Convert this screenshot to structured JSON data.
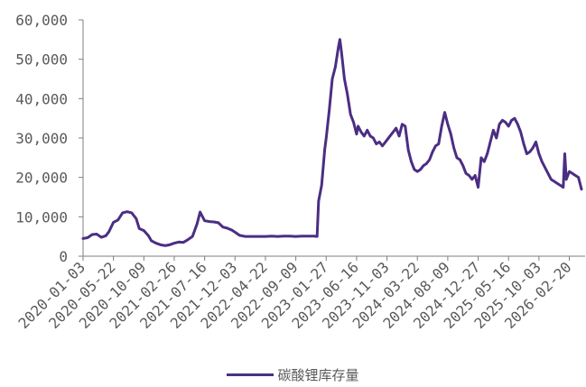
{
  "colors": {
    "series": "#4B2E83",
    "axis": "#7f7f7f",
    "text": "#595959"
  },
  "chart_data": {
    "type": "line",
    "title": "",
    "xlabel": "",
    "ylabel": "",
    "ylim": [
      0,
      60000
    ],
    "yticks": [
      0,
      10000,
      20000,
      30000,
      40000,
      50000,
      60000
    ],
    "ytick_labels": [
      "0",
      "10,000",
      "20,000",
      "30,000",
      "40,000",
      "50,000",
      "60,000"
    ],
    "xtick_labels": [
      "2020-01-03",
      "2020-05-22",
      "2020-10-09",
      "2021-02-26",
      "2021-07-16",
      "2021-12-03",
      "2022-04-22",
      "2022-09-09",
      "2023-01-27",
      "2023-06-16",
      "2023-11-03",
      "2024-03-22",
      "2024-08-09",
      "2024-12-27",
      "2025-05-16",
      "2025-10-03",
      "2026-02-20"
    ],
    "x_range": [
      "2020-01-03",
      "2026-04-17"
    ],
    "grid": false,
    "legend_position": "bottom",
    "series": [
      {
        "name": "碳酸锂库存量",
        "color": "#4B2E83",
        "points": [
          [
            "2020-01-03",
            4500
          ],
          [
            "2020-01-24",
            4700
          ],
          [
            "2020-02-14",
            5500
          ],
          [
            "2020-03-06",
            5600
          ],
          [
            "2020-03-27",
            4800
          ],
          [
            "2020-04-17",
            5200
          ],
          [
            "2020-05-01",
            6200
          ],
          [
            "2020-05-22",
            8600
          ],
          [
            "2020-06-12",
            9200
          ],
          [
            "2020-07-03",
            11000
          ],
          [
            "2020-07-24",
            11300
          ],
          [
            "2020-08-14",
            11000
          ],
          [
            "2020-09-04",
            9500
          ],
          [
            "2020-09-18",
            7000
          ],
          [
            "2020-10-09",
            6500
          ],
          [
            "2020-10-30",
            5200
          ],
          [
            "2020-11-13",
            3900
          ],
          [
            "2020-12-04",
            3300
          ],
          [
            "2020-12-25",
            2900
          ],
          [
            "2021-01-15",
            2700
          ],
          [
            "2021-02-05",
            2900
          ],
          [
            "2021-02-26",
            3300
          ],
          [
            "2021-03-19",
            3600
          ],
          [
            "2021-04-09",
            3500
          ],
          [
            "2021-04-30",
            4200
          ],
          [
            "2021-05-21",
            5000
          ],
          [
            "2021-06-11",
            8200
          ],
          [
            "2021-06-25",
            11200
          ],
          [
            "2021-07-16",
            9000
          ],
          [
            "2021-08-06",
            8800
          ],
          [
            "2021-08-27",
            8700
          ],
          [
            "2021-09-17",
            8500
          ],
          [
            "2021-10-08",
            7400
          ],
          [
            "2021-10-29",
            7100
          ],
          [
            "2021-11-19",
            6600
          ],
          [
            "2021-12-03",
            6100
          ],
          [
            "2021-12-24",
            5300
          ],
          [
            "2022-01-21",
            5000
          ],
          [
            "2022-02-18",
            5000
          ],
          [
            "2022-03-18",
            5000
          ],
          [
            "2022-04-22",
            5000
          ],
          [
            "2022-05-20",
            5100
          ],
          [
            "2022-06-17",
            5000
          ],
          [
            "2022-07-15",
            5100
          ],
          [
            "2022-08-12",
            5100
          ],
          [
            "2022-09-09",
            5000
          ],
          [
            "2022-10-07",
            5100
          ],
          [
            "2022-11-04",
            5100
          ],
          [
            "2022-12-02",
            5100
          ],
          [
            "2022-12-16",
            5000
          ],
          [
            "2022-12-23",
            14000
          ],
          [
            "2023-01-06",
            18000
          ],
          [
            "2023-01-20",
            27000
          ],
          [
            "2023-01-27",
            30000
          ],
          [
            "2023-02-10",
            37000
          ],
          [
            "2023-02-24",
            45000
          ],
          [
            "2023-03-10",
            48000
          ],
          [
            "2023-03-24",
            53000
          ],
          [
            "2023-03-31",
            55000
          ],
          [
            "2023-04-07",
            52000
          ],
          [
            "2023-04-21",
            45000
          ],
          [
            "2023-05-05",
            41000
          ],
          [
            "2023-05-19",
            36000
          ],
          [
            "2023-06-02",
            34000
          ],
          [
            "2023-06-16",
            31000
          ],
          [
            "2023-06-23",
            33000
          ],
          [
            "2023-07-07",
            31500
          ],
          [
            "2023-07-21",
            30500
          ],
          [
            "2023-08-04",
            32000
          ],
          [
            "2023-08-18",
            30500
          ],
          [
            "2023-09-01",
            30000
          ],
          [
            "2023-09-15",
            28500
          ],
          [
            "2023-09-29",
            29000
          ],
          [
            "2023-10-13",
            28000
          ],
          [
            "2023-11-03",
            29500
          ],
          [
            "2023-11-17",
            30500
          ],
          [
            "2023-12-01",
            31500
          ],
          [
            "2023-12-15",
            32500
          ],
          [
            "2023-12-29",
            30500
          ],
          [
            "2024-01-12",
            33500
          ],
          [
            "2024-01-26",
            33000
          ],
          [
            "2024-02-09",
            27000
          ],
          [
            "2024-02-23",
            24000
          ],
          [
            "2024-03-08",
            22000
          ],
          [
            "2024-03-22",
            21500
          ],
          [
            "2024-04-05",
            22000
          ],
          [
            "2024-04-19",
            23000
          ],
          [
            "2024-05-03",
            23500
          ],
          [
            "2024-05-17",
            24500
          ],
          [
            "2024-05-31",
            26500
          ],
          [
            "2024-06-14",
            28000
          ],
          [
            "2024-06-28",
            28500
          ],
          [
            "2024-07-12",
            33000
          ],
          [
            "2024-07-26",
            36500
          ],
          [
            "2024-08-09",
            33500
          ],
          [
            "2024-08-23",
            31000
          ],
          [
            "2024-09-06",
            27500
          ],
          [
            "2024-09-20",
            25000
          ],
          [
            "2024-10-04",
            24500
          ],
          [
            "2024-10-18",
            23000
          ],
          [
            "2024-11-01",
            21000
          ],
          [
            "2024-11-15",
            20500
          ],
          [
            "2024-11-29",
            19500
          ],
          [
            "2024-12-13",
            20500
          ],
          [
            "2024-12-27",
            17500
          ],
          [
            "2025-01-10",
            25000
          ],
          [
            "2025-01-24",
            24000
          ],
          [
            "2025-02-07",
            26000
          ],
          [
            "2025-02-21",
            29000
          ],
          [
            "2025-03-07",
            32000
          ],
          [
            "2025-03-21",
            30000
          ],
          [
            "2025-04-04",
            33500
          ],
          [
            "2025-04-18",
            34500
          ],
          [
            "2025-05-02",
            34000
          ],
          [
            "2025-05-16",
            33000
          ],
          [
            "2025-05-30",
            34500
          ],
          [
            "2025-06-13",
            35000
          ],
          [
            "2025-06-27",
            33500
          ],
          [
            "2025-07-11",
            31500
          ],
          [
            "2025-07-25",
            28500
          ],
          [
            "2025-08-08",
            26000
          ],
          [
            "2025-08-22",
            26500
          ],
          [
            "2025-09-05",
            27500
          ],
          [
            "2025-09-19",
            29000
          ],
          [
            "2025-10-03",
            26000
          ],
          [
            "2025-10-17",
            24000
          ],
          [
            "2025-10-31",
            22500
          ],
          [
            "2025-11-14",
            21000
          ],
          [
            "2025-11-28",
            19500
          ],
          [
            "2025-12-12",
            19000
          ],
          [
            "2025-12-26",
            18500
          ],
          [
            "2026-01-09",
            18000
          ],
          [
            "2026-01-23",
            17500
          ],
          [
            "2026-01-30",
            26000
          ],
          [
            "2026-02-06",
            19500
          ],
          [
            "2026-02-20",
            21500
          ],
          [
            "2026-03-06",
            21000
          ],
          [
            "2026-03-20",
            20500
          ],
          [
            "2026-04-03",
            20000
          ],
          [
            "2026-04-17",
            17000
          ]
        ]
      }
    ]
  }
}
